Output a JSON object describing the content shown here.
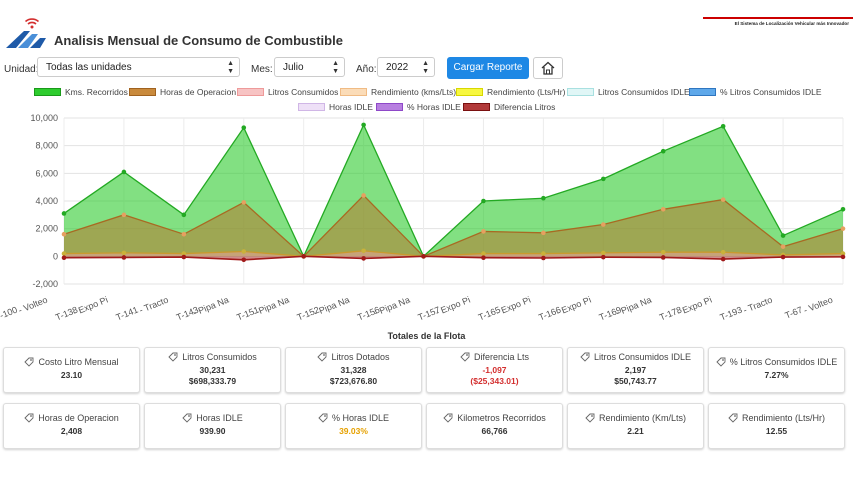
{
  "header": {
    "title": "Analisis Mensual de Consumo de Combustible",
    "tagline": "El Sistema de Localización Vehicular más Innovador"
  },
  "controls": {
    "unit_label": "Unidad:",
    "unit_value": "Todas las unidades",
    "month_label": "Mes:",
    "month_value": "Julio",
    "year_label": "Año:",
    "year_value": "2022",
    "load_button": "Cargar Reporte"
  },
  "colors": {
    "green": "#2ecc2e",
    "brown": "#b7792e",
    "pink": "#f0a0a0",
    "peach": "#f5c89a",
    "yellow": "#f2f200",
    "lightblue": "#b9e8e8",
    "blue": "#2f86d8",
    "lavender": "#d9c2ee",
    "purple": "#9b59d0",
    "darkred": "#a11a1a",
    "button": "#1e88e5"
  },
  "legend": [
    "Kms. Recorridos",
    "Horas de Operacion",
    "Litros Consumidos",
    "Rendimiento (kms/Lts)",
    "Rendimiento (Lts/Hr)",
    "Litros Consumidos IDLE",
    "% Litros Consumidos IDLE",
    "Horas IDLE",
    "% Horas IDLE",
    "Diferencia Litros"
  ],
  "chart_data": {
    "type": "area",
    "y_ticks": [
      "10,000",
      "8,000",
      "6,000",
      "4,000",
      "2,000",
      "0",
      "-2,000"
    ],
    "ylim": [
      -2000,
      10000
    ],
    "x_labels": [
      "T-100",
      "- Volteo",
      "T-138",
      "- Expo Pi",
      "T-141",
      "- Tracto",
      "T-143",
      "- Pipa Na",
      "T-151",
      "- Pipa Na",
      "T-152",
      "- Pipa Na",
      "T-156",
      "- Pipa Na",
      "T-157",
      "- Expo Pi",
      "T-165",
      "- Expo Pi",
      "T-166",
      "- Expo Pi",
      "T-169",
      "- Pipa Na",
      "T-178",
      "- Expo Pi",
      "T-193",
      "- Tracto",
      "T-67",
      "- Volteo"
    ],
    "series": [
      {
        "name": "Kms. Recorridos",
        "values": [
          3100,
          6100,
          3000,
          9300,
          0,
          9500,
          0,
          4000,
          4200,
          5600,
          7600,
          9400,
          1500,
          3400
        ]
      },
      {
        "name": "Horas de Operacion",
        "values": [
          1600,
          3000,
          1600,
          3900,
          0,
          4400,
          0,
          1800,
          1700,
          2300,
          3400,
          4100,
          700,
          2000
        ]
      },
      {
        "name": "Litros Consumidos",
        "values": [
          200,
          250,
          200,
          350,
          0,
          400,
          0,
          200,
          200,
          250,
          300,
          300,
          100,
          200
        ]
      },
      {
        "name": "Diferencia Litros",
        "values": [
          -100,
          -80,
          -50,
          -250,
          0,
          -150,
          0,
          -100,
          -120,
          -60,
          -80,
          -200,
          -50,
          -40
        ]
      }
    ]
  },
  "totals": {
    "title": "Totales de la Flota",
    "cards": [
      {
        "label": "Costo Litro Mensual",
        "value": "23.10"
      },
      {
        "label": "Litros Consumidos",
        "value": "30,231",
        "value2": "$698,333.79"
      },
      {
        "label": "Litros Dotados",
        "value": "31,328",
        "value2": "$723,676.80"
      },
      {
        "label": "Diferencia Lts",
        "value": "-1,097",
        "value2": "($25,343.01)"
      },
      {
        "label": "Litros Consumidos IDLE",
        "value": "2,197",
        "value2": "$50,743.77"
      },
      {
        "label": "% Litros Consumidos IDLE",
        "value": "7.27%"
      },
      {
        "label": "Horas de Operacion",
        "value": "2,408"
      },
      {
        "label": "Horas IDLE",
        "value": "939.90"
      },
      {
        "label": "% Horas IDLE",
        "value": "39.03%"
      },
      {
        "label": "Kilometros Recorridos",
        "value": "66,766"
      },
      {
        "label": "Rendimiento (Km/Lts)",
        "value": "2.21"
      },
      {
        "label": "Rendimiento (Lts/Hr)",
        "value": "12.55"
      }
    ]
  }
}
